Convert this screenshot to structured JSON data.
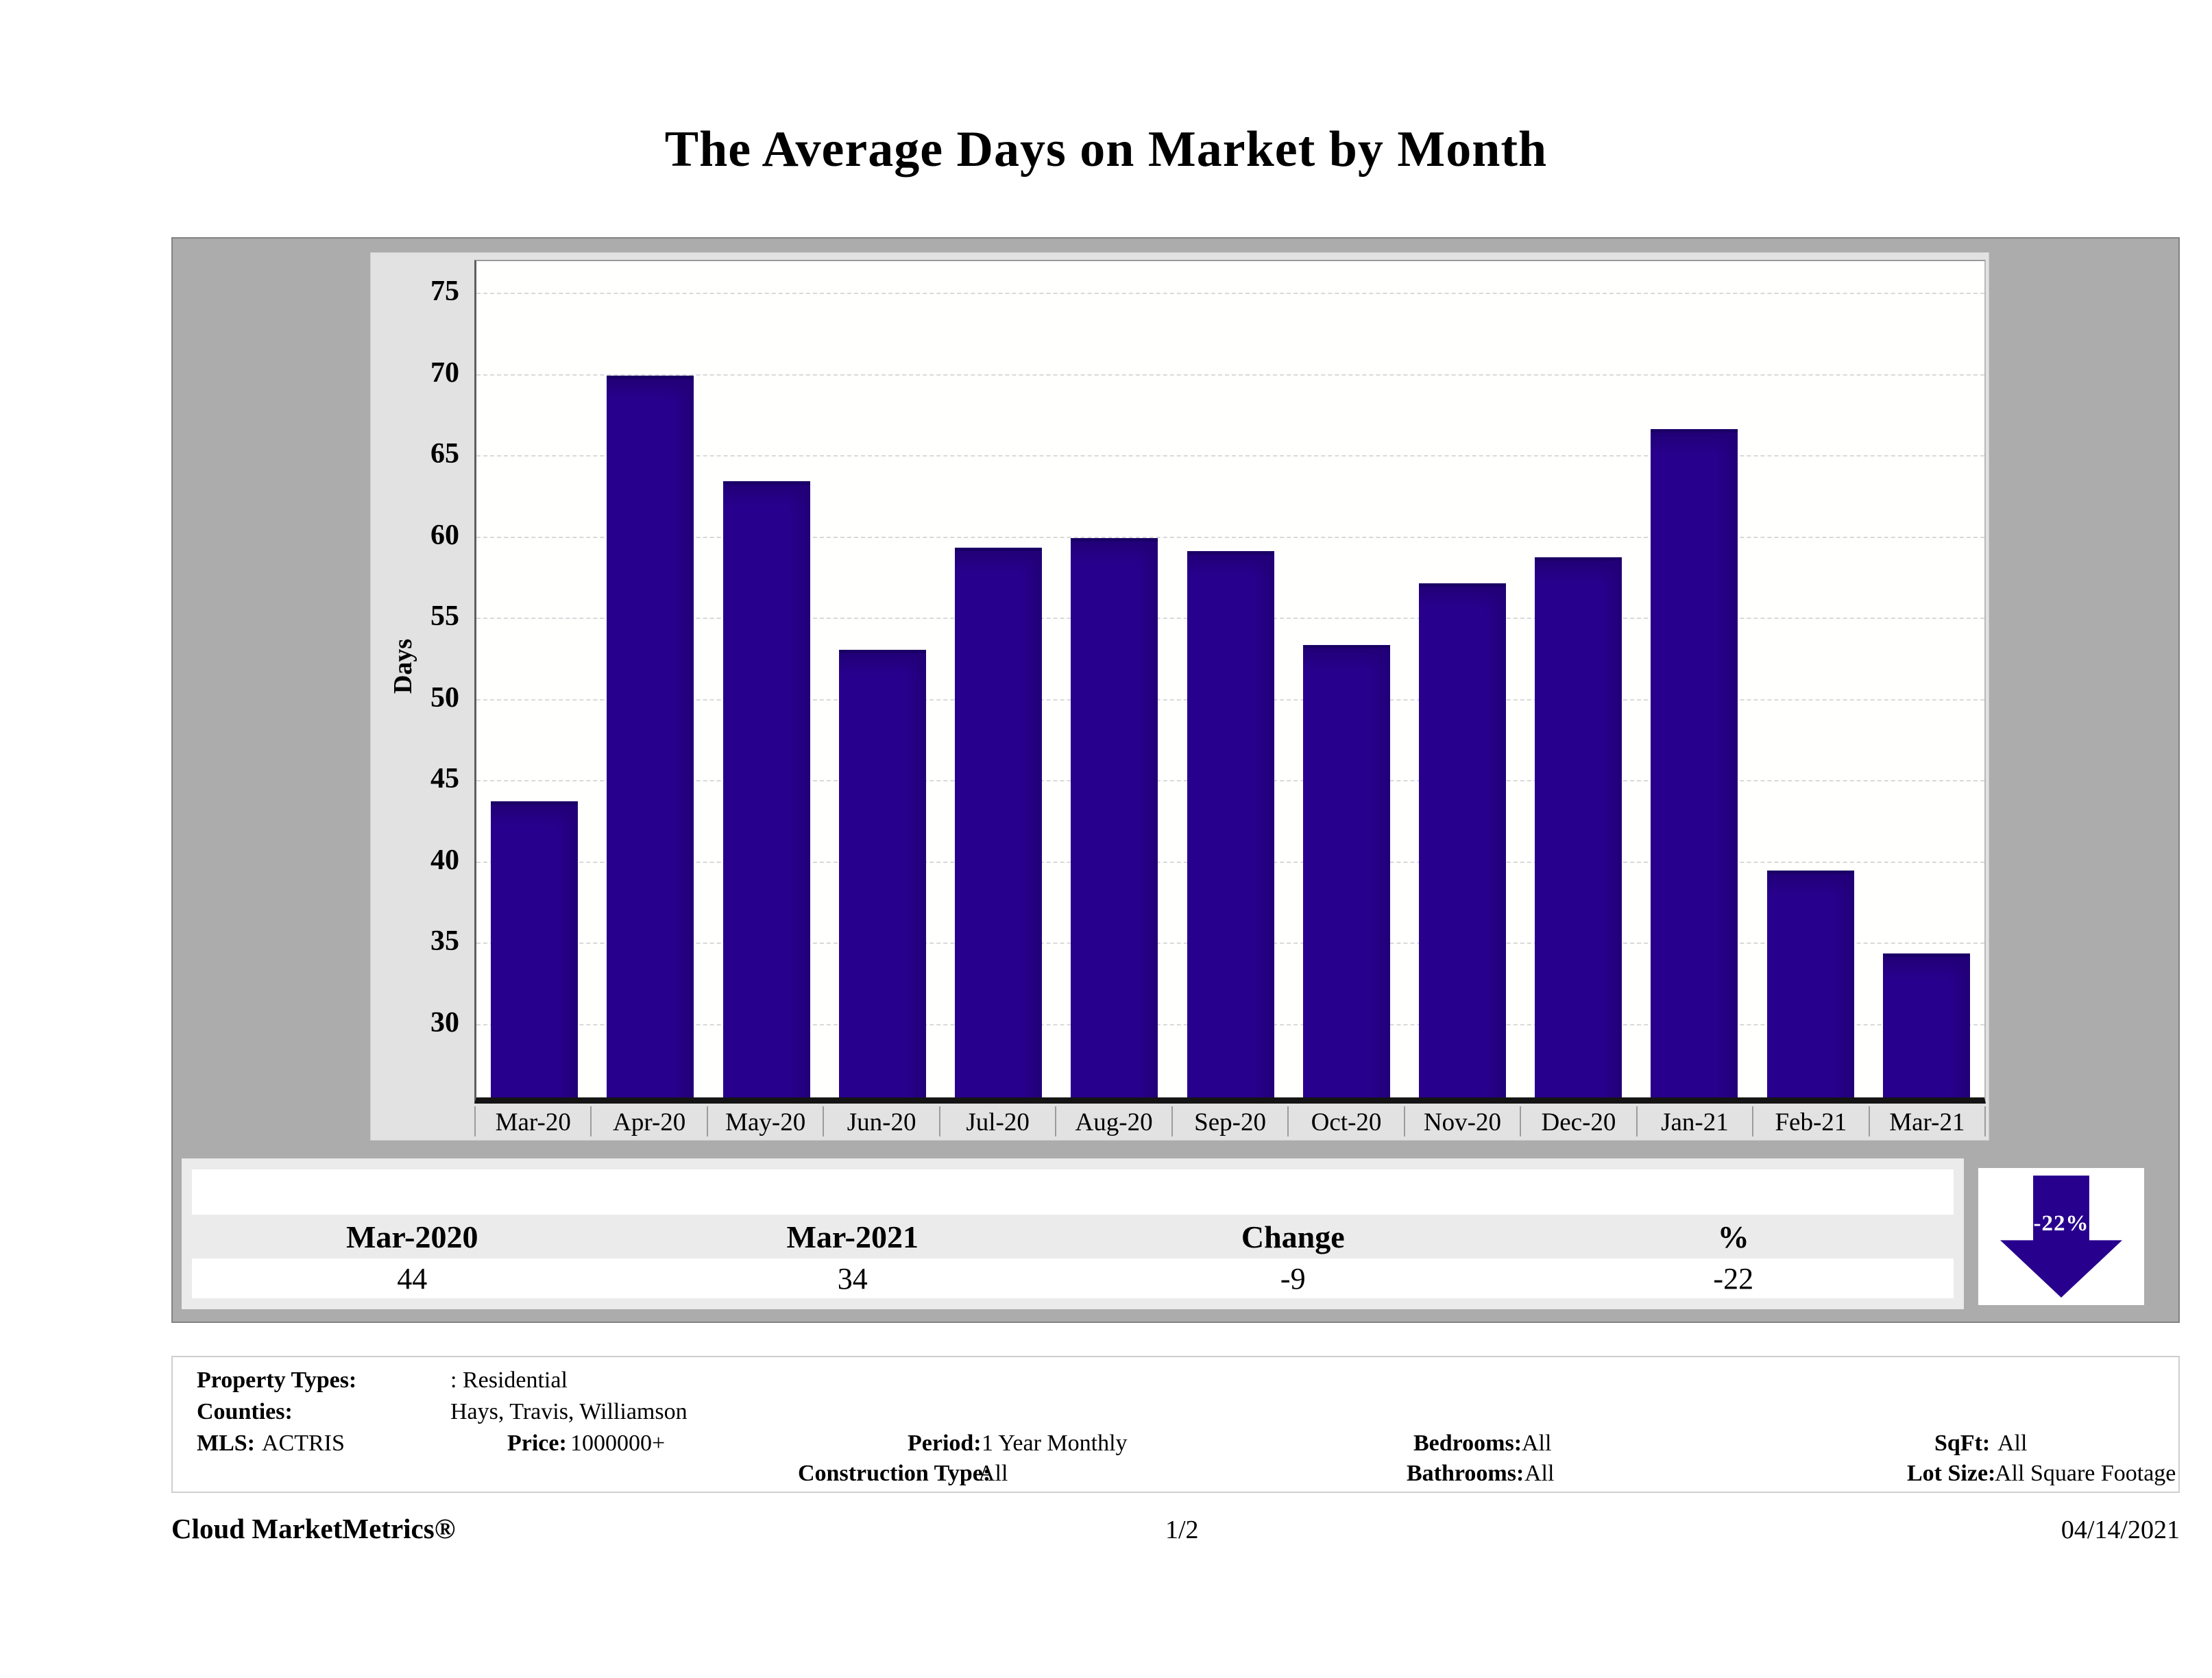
{
  "title": "The Average Days on Market by Month",
  "chart_data": {
    "type": "bar",
    "title": "The Average Days on Market by Month",
    "categories": [
      "Mar-20",
      "Apr-20",
      "May-20",
      "Jun-20",
      "Jul-20",
      "Aug-20",
      "Sep-20",
      "Oct-20",
      "Nov-20",
      "Dec-20",
      "Jan-21",
      "Feb-21",
      "Mar-21"
    ],
    "values": [
      43.5,
      69.7,
      63.2,
      52.8,
      59.1,
      59.7,
      58.9,
      53.1,
      56.9,
      58.5,
      66.4,
      39.2,
      34.1
    ],
    "xlabel": "",
    "ylabel": "Days",
    "ylim": [
      25.5,
      77
    ],
    "yticks": [
      75,
      70,
      65,
      60,
      55,
      50,
      45,
      40,
      35,
      30
    ],
    "grid": true,
    "legend": "none",
    "bar_color": "#28008e"
  },
  "summary_table": {
    "headers": [
      "Mar-2020",
      "Mar-2021",
      "Change",
      "%"
    ],
    "values": [
      "44",
      "34",
      "-9",
      "-22"
    ]
  },
  "badge": {
    "label": "-22%",
    "direction": "down",
    "color": "#28008e"
  },
  "filters": {
    "property_types_label": "Property Types:",
    "property_types": ": Residential",
    "counties_label": "Counties:",
    "counties": "Hays, Travis, Williamson",
    "mls_label": "MLS:",
    "mls": "ACTRIS",
    "price_label": "Price:",
    "price": "1000000+",
    "period_label": "Period:",
    "period": "1 Year Monthly",
    "construction_label": "Construction Type:",
    "construction": "All",
    "bedrooms_label": "Bedrooms:",
    "bedrooms": "All",
    "bathrooms_label": "Bathrooms:",
    "bathrooms": "All",
    "sqft_label": "SqFt:",
    "sqft": "All",
    "lot_label": "Lot Size:",
    "lot": "All Square Footage"
  },
  "footer": {
    "brand": "Cloud MarketMetrics®",
    "page": "1/2",
    "date": "04/14/2021"
  }
}
